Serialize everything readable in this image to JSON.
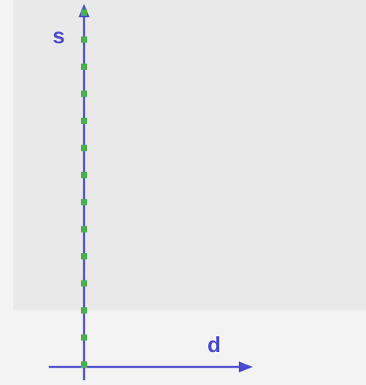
{
  "axes": {
    "y_label": "s",
    "x_label": "d"
  },
  "colors": {
    "axis": "#4a4ad0",
    "marker": "#4caf50",
    "panel": "#e9e9e9",
    "background": "#f3f3f3"
  },
  "markers": {
    "count": 14,
    "shape": "square"
  }
}
